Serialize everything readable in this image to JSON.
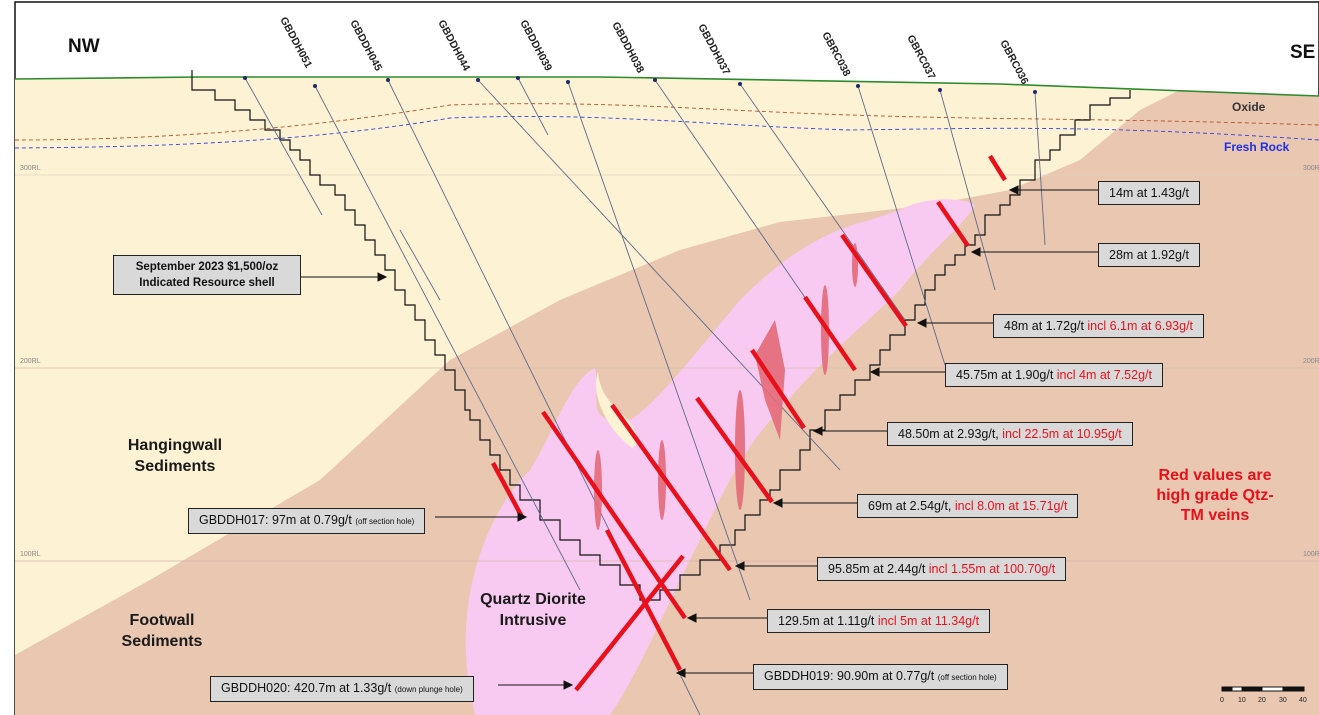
{
  "directions": {
    "left": "NW",
    "right": "SE"
  },
  "layers": {
    "oxide": "Oxide",
    "fresh_rock": "Fresh Rock"
  },
  "rl_labels": {
    "rl300": "300RL",
    "rl200": "200RL",
    "rl100": "100RL"
  },
  "zones": {
    "hangingwall": "Hangingwall Sediments",
    "footwall": "Footwall Sediments",
    "intrusive": "Quartz Diorite Intrusive"
  },
  "resource_shell": "September 2023 $1,500/oz Indicated Resource shell",
  "red_note": "Red values are high grade Qtz-TM veins",
  "drill_holes": [
    "GBDDH051",
    "GBDDH045",
    "GBDDH044",
    "GBDDH039",
    "GBDDH038",
    "GBDDH037",
    "GBRC038",
    "GBRC037",
    "GBRC036"
  ],
  "intercepts": [
    {
      "main": "14m at 1.43g/t",
      "incl": ""
    },
    {
      "main": "28m at 1.92g/t",
      "incl": ""
    },
    {
      "main": "48m at 1.72g/t",
      "incl": "incl 6.1m at 6.93g/t"
    },
    {
      "main": "45.75m at 1.90g/t",
      "incl": "incl 4m at 7.52g/t"
    },
    {
      "main": "48.50m at 2.93g/t,",
      "incl": "incl 22.5m at 10.95g/t"
    },
    {
      "main": "69m at 2.54g/t,",
      "incl": "incl 8.0m at 15.71g/t"
    },
    {
      "main": "95.85m at 2.44g/t",
      "incl": "incl 1.55m at 100.70g/t"
    },
    {
      "main": "129.5m at 1.11g/t",
      "incl": "incl 5m at 11.34g/t"
    }
  ],
  "off_section": [
    {
      "main": "GBDDH017: 97m at 0.79g/t",
      "note": "(off section hole)"
    },
    {
      "main": "GBDDH019: 90.90m at 0.77g/t",
      "note": "(off section hole)"
    },
    {
      "main": "GBDDH020: 420.7m at 1.33g/t",
      "note": "(down plunge hole)"
    }
  ],
  "scale_bar": {
    "ticks": [
      "0",
      "10",
      "20",
      "30",
      "40"
    ]
  },
  "colors": {
    "hangingwall": "#fdf2d4",
    "footwall": "#e9c7b0",
    "intrusive": "#f9caf1",
    "high_grade": "#e8111b",
    "surface": "#2e8b2e"
  }
}
